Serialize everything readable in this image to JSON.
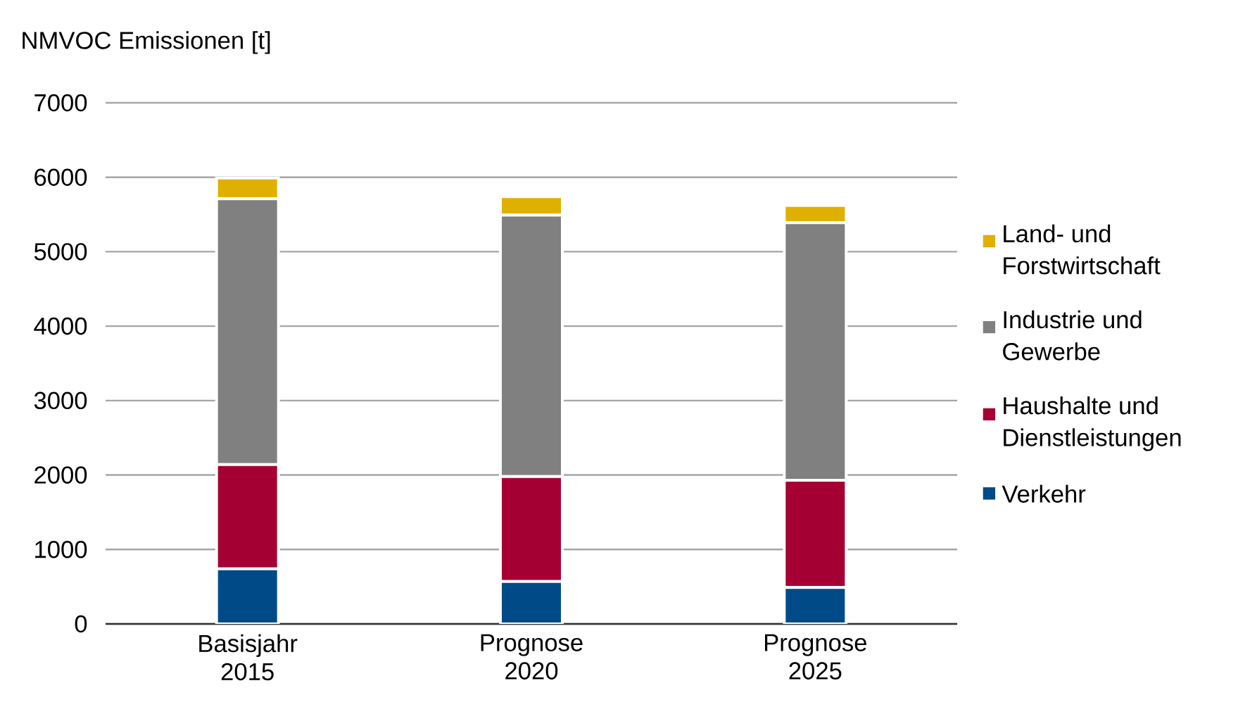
{
  "chart_data": {
    "type": "bar",
    "stacked": true,
    "ylabel": "NMVOC Emissionen [t]",
    "categories": [
      "Basisjahr 2015",
      "Prognose 2020",
      "Prognose 2025"
    ],
    "series": [
      {
        "name": "Verkehr",
        "color": "#004b87",
        "values": [
          740,
          570,
          490
        ]
      },
      {
        "name": "Haushalte und Dienstleistungen",
        "color": "#a50034",
        "values": [
          1400,
          1410,
          1440
        ]
      },
      {
        "name": "Industrie und Gewerbe",
        "color": "#808080",
        "values": [
          3570,
          3510,
          3460
        ]
      },
      {
        "name": "Land- und Forstwirtschaft",
        "color": "#e0b000",
        "values": [
          280,
          250,
          230
        ]
      }
    ],
    "ylim": [
      0,
      7000
    ],
    "yticks": [
      0,
      1000,
      2000,
      3000,
      4000,
      5000,
      6000,
      7000
    ],
    "grid": "y",
    "legend": "right"
  }
}
